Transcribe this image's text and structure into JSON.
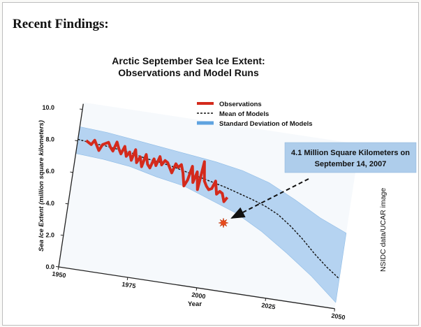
{
  "heading": "Recent Findings:",
  "chart_data": {
    "type": "line",
    "title_lines": [
      "Arctic September Sea Ice Extent:",
      "Observations and Model Runs"
    ],
    "xlabel": "Year",
    "ylabel": "Sea Ice Extent (million square kilometers)",
    "xlim": [
      1950,
      2050
    ],
    "ylim": [
      0,
      10
    ],
    "x_ticks": [
      1950,
      1975,
      2000,
      2025,
      2050
    ],
    "y_ticks": [
      "0.0",
      "2.0",
      "4.0",
      "6.0",
      "8.0",
      "10.0"
    ],
    "legend_position": "top-right",
    "series": [
      {
        "name": "Observations",
        "style": "solid",
        "color": "#d42a1c",
        "x": [
          1953,
          1954,
          1955,
          1956,
          1957,
          1958,
          1959,
          1960,
          1961,
          1962,
          1963,
          1964,
          1965,
          1966,
          1967,
          1968,
          1969,
          1970,
          1971,
          1972,
          1973,
          1974,
          1975,
          1976,
          1977,
          1978,
          1979,
          1980,
          1981,
          1982,
          1983,
          1984,
          1985,
          1986,
          1987,
          1988,
          1989,
          1990,
          1991,
          1992,
          1993,
          1994,
          1995,
          1996,
          1997,
          1998,
          1999,
          2000,
          2001,
          2002,
          2003,
          2004,
          2005,
          2006
        ],
        "y": [
          8.1,
          8.0,
          7.9,
          8.2,
          7.9,
          7.6,
          8.0,
          8.1,
          8.2,
          7.9,
          7.7,
          8.3,
          7.9,
          7.6,
          8.1,
          7.5,
          7.8,
          7.3,
          8.0,
          7.2,
          7.6,
          7.0,
          7.8,
          7.2,
          7.0,
          7.6,
          7.2,
          7.8,
          7.3,
          7.6,
          7.5,
          7.2,
          6.9,
          7.5,
          7.3,
          7.5,
          7.0,
          6.2,
          6.6,
          7.5,
          6.5,
          7.2,
          6.1,
          7.9,
          6.7,
          6.4,
          6.2,
          6.3,
          6.8,
          6.0,
          6.2,
          6.1,
          5.6,
          5.9
        ]
      },
      {
        "name": "Mean of Models",
        "style": "dashed",
        "color": "#111111",
        "x": [
          1950,
          1955,
          1960,
          1965,
          1970,
          1975,
          1980,
          1985,
          1990,
          1995,
          2000,
          2005,
          2010,
          2015,
          2020,
          2025,
          2030,
          2035,
          2040,
          2045,
          2050
        ],
        "y": [
          8.1,
          8.0,
          7.95,
          7.85,
          7.75,
          7.55,
          7.45,
          7.3,
          7.1,
          6.9,
          6.7,
          6.5,
          6.25,
          6.0,
          5.7,
          5.3,
          4.7,
          4.0,
          3.2,
          2.5,
          1.9
        ]
      },
      {
        "name": "Standard Deviation of Models",
        "style": "band",
        "color": "#7fb6e6",
        "x": [
          1950,
          1960,
          1970,
          1980,
          1990,
          2000,
          2010,
          2020,
          2030,
          2040,
          2050
        ],
        "upper": [
          8.9,
          8.8,
          8.6,
          8.4,
          8.2,
          8.0,
          7.7,
          7.2,
          6.4,
          5.5,
          4.8
        ],
        "lower": [
          7.2,
          7.1,
          6.9,
          6.5,
          6.2,
          5.6,
          5.0,
          4.1,
          3.0,
          1.8,
          0.4
        ]
      }
    ],
    "annotations": [
      {
        "text_lines": [
          "4.1 Million Square Kilometers on",
          "September 14, 2007"
        ],
        "marker": "star",
        "x": 2007,
        "y": 4.1,
        "color": "#e84a1a"
      }
    ]
  },
  "credit": "NSIDC data/UCAR image"
}
